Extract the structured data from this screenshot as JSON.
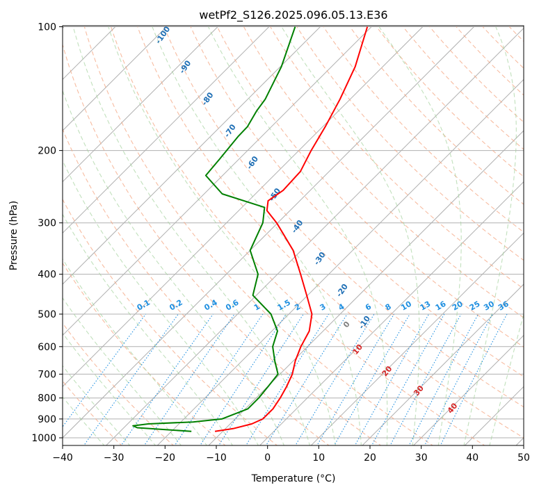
{
  "chart_data": {
    "type": "skew-t",
    "title": "wetPf2_S126.2025.096.05.13.E36",
    "xlabel": "Temperature (°C)",
    "ylabel": "Pressure (hPa)",
    "xlim": [
      -40,
      50
    ],
    "ylim": [
      1050,
      100
    ],
    "y_scale": "log",
    "x_ticks": [
      "−40",
      "−30",
      "−20",
      "−10",
      "0",
      "10",
      "20",
      "30",
      "40",
      "50"
    ],
    "x_tick_values": [
      -40,
      -30,
      -20,
      -10,
      0,
      10,
      20,
      30,
      40,
      50
    ],
    "y_ticks": [
      "1000",
      "900",
      "800",
      "700",
      "600",
      "500",
      "400",
      "300",
      "200",
      "100"
    ],
    "y_tick_values": [
      1000,
      900,
      800,
      700,
      600,
      500,
      400,
      300,
      200,
      100
    ],
    "grid": true,
    "colors": {
      "temperature": "#ff0000",
      "dewpoint": "#008000",
      "isotherm": "#b0b0b0",
      "dry_adiabat": "#f4a582",
      "moist_adiabat": "#a6d3a0",
      "mixing_ratio": "#1f8fe0",
      "dry_adiabat_label": "#d62728",
      "moist_adiabat_label": "#1f6fb5",
      "zero_label": "#808080"
    },
    "series": [
      {
        "role": "temperature",
        "points": [
          {
            "p": 965,
            "t": -11.5
          },
          {
            "p": 950,
            "t": -8.5
          },
          {
            "p": 925,
            "t": -5.8
          },
          {
            "p": 900,
            "t": -4.6
          },
          {
            "p": 850,
            "t": -4.6
          },
          {
            "p": 800,
            "t": -5.3
          },
          {
            "p": 750,
            "t": -6.3
          },
          {
            "p": 700,
            "t": -7.6
          },
          {
            "p": 650,
            "t": -9.6
          },
          {
            "p": 600,
            "t": -11.3
          },
          {
            "p": 550,
            "t": -12.7
          },
          {
            "p": 500,
            "t": -15.5
          },
          {
            "p": 450,
            "t": -20.2
          },
          {
            "p": 400,
            "t": -25.5
          },
          {
            "p": 350,
            "t": -31.6
          },
          {
            "p": 300,
            "t": -40.2
          },
          {
            "p": 280,
            "t": -44.5
          },
          {
            "p": 265,
            "t": -46.2
          },
          {
            "p": 250,
            "t": -45.3
          },
          {
            "p": 225,
            "t": -45.6
          },
          {
            "p": 200,
            "t": -47.6
          },
          {
            "p": 175,
            "t": -49.5
          },
          {
            "p": 150,
            "t": -52.0
          },
          {
            "p": 125,
            "t": -55.4
          },
          {
            "p": 100,
            "t": -60.8
          }
        ]
      },
      {
        "role": "dewpoint",
        "points": [
          {
            "p": 965,
            "t": -16.1
          },
          {
            "p": 955,
            "t": -21.5
          },
          {
            "p": 945,
            "t": -27.4
          },
          {
            "p": 935,
            "t": -28.6
          },
          {
            "p": 925,
            "t": -26.0
          },
          {
            "p": 915,
            "t": -17.6
          },
          {
            "p": 900,
            "t": -12.6
          },
          {
            "p": 850,
            "t": -9.5
          },
          {
            "p": 800,
            "t": -9.5
          },
          {
            "p": 750,
            "t": -9.9
          },
          {
            "p": 700,
            "t": -10.4
          },
          {
            "p": 650,
            "t": -13.6
          },
          {
            "p": 600,
            "t": -16.8
          },
          {
            "p": 550,
            "t": -18.9
          },
          {
            "p": 500,
            "t": -23.5
          },
          {
            "p": 450,
            "t": -30.7
          },
          {
            "p": 400,
            "t": -33.8
          },
          {
            "p": 350,
            "t": -40.0
          },
          {
            "p": 300,
            "t": -42.9
          },
          {
            "p": 275,
            "t": -45.6
          },
          {
            "p": 255,
            "t": -56.5
          },
          {
            "p": 230,
            "t": -63.3
          },
          {
            "p": 210,
            "t": -63.8
          },
          {
            "p": 185,
            "t": -64.6
          },
          {
            "p": 175,
            "t": -64.7
          },
          {
            "p": 160,
            "t": -66.0
          },
          {
            "p": 150,
            "t": -66.6
          },
          {
            "p": 125,
            "t": -69.8
          },
          {
            "p": 100,
            "t": -74.9
          }
        ]
      }
    ],
    "moist_adiabat_labels": [
      "-100",
      "-90",
      "-80",
      "-70",
      "-60",
      "-50",
      "-40",
      "-30",
      "-20",
      "-10"
    ],
    "mixing_ratio_labels": [
      "0.1",
      "0.2",
      "0.4",
      "0.6",
      "1",
      "1.5",
      "2",
      "3",
      "4",
      "6",
      "8",
      "10",
      "13",
      "16",
      "20",
      "25",
      "30",
      "36"
    ],
    "dry_adiabat_labels": [
      "0",
      "10",
      "20",
      "30",
      "40"
    ]
  }
}
